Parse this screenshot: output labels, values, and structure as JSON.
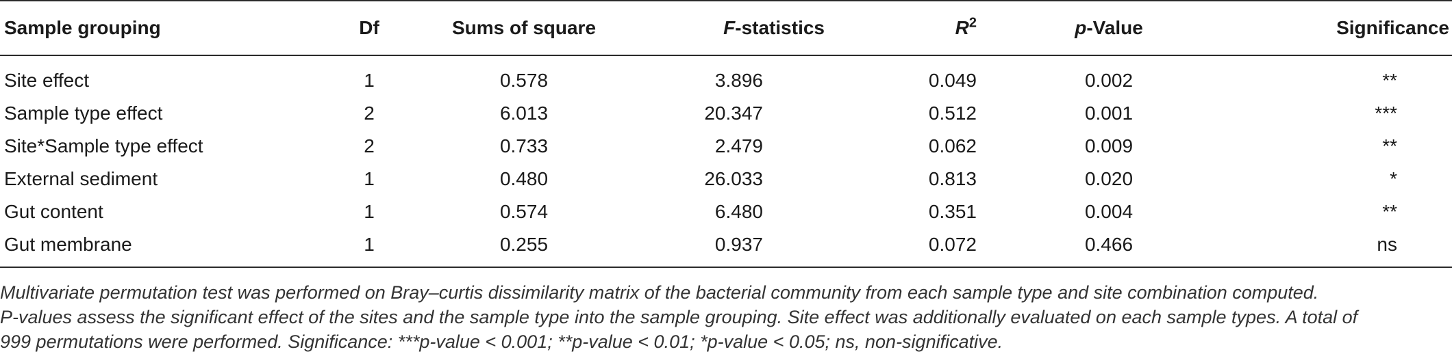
{
  "table": {
    "headers": [
      {
        "pre": "",
        "main": "Sample grouping",
        "post": ""
      },
      {
        "pre": "",
        "main": "Df",
        "post": ""
      },
      {
        "pre": "",
        "main": "Sums of square",
        "post": ""
      },
      {
        "pre": "F",
        "main": "-statistics",
        "post": ""
      },
      {
        "pre": "R",
        "main": "",
        "post": "2"
      },
      {
        "pre": "p",
        "main": "-Value",
        "post": ""
      },
      {
        "pre": "",
        "main": "Significance",
        "post": ""
      }
    ],
    "rows": [
      [
        "Site effect",
        "1",
        "0.578",
        "3.896",
        "0.049",
        "0.002",
        "**"
      ],
      [
        "Sample type effect",
        "2",
        "6.013",
        "20.347",
        "0.512",
        "0.001",
        "***"
      ],
      [
        "Site*Sample type effect",
        "2",
        "0.733",
        "2.479",
        "0.062",
        "0.009",
        "**"
      ],
      [
        "External sediment",
        "1",
        "0.480",
        "26.033",
        "0.813",
        "0.020",
        "*"
      ],
      [
        "Gut content",
        "1",
        "0.574",
        "6.480",
        "0.351",
        "0.004",
        "**"
      ],
      [
        "Gut membrane",
        "1",
        "0.255",
        "0.937",
        "0.072",
        "0.466",
        "ns"
      ]
    ]
  },
  "footnote": {
    "line1": "Multivariate permutation test was performed on Bray–curtis dissimilarity matrix of the bacterial community from each sample type and site combination computed.",
    "line2": "P-values assess the significant effect of the sites and the sample type into the sample grouping. Site effect was additionally evaluated on each sample types. A total of",
    "line3": "999 permutations were performed. Significance: ***p-value < 0.001; **p-value < 0.01; *p-value < 0.05; ns, non-significative."
  }
}
